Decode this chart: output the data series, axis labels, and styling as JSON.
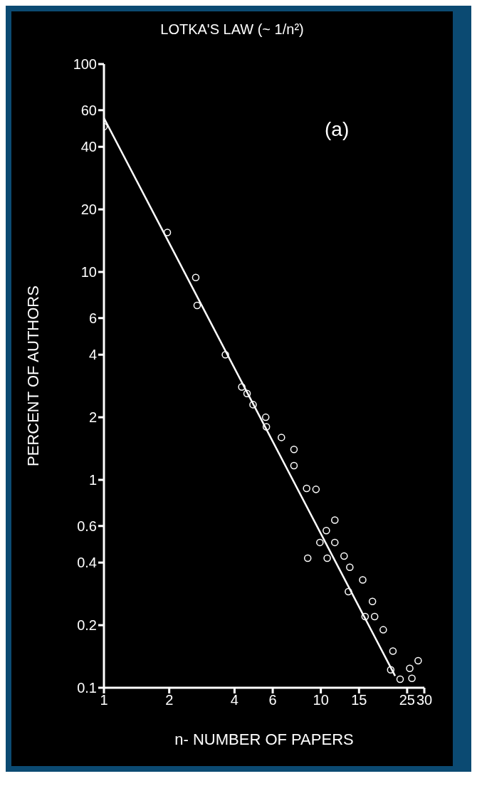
{
  "chart_data": {
    "type": "scatter",
    "title": "LOTKA'S LAW (~ 1/n²)",
    "xlabel": "n- NUMBER OF PAPERS",
    "ylabel": "PERCENT OF AUTHORS",
    "annotations": [
      "(a)"
    ],
    "log": "xy",
    "marker": "circle",
    "xlim": [
      1,
      30
    ],
    "xticks": [
      1,
      2,
      4,
      6,
      10,
      15,
      25,
      30
    ],
    "ylim": [
      0.1,
      100
    ],
    "yticks": [
      0.1,
      0.2,
      0.4,
      0.6,
      1,
      2,
      4,
      6,
      10,
      20,
      40,
      60,
      100
    ],
    "series": [
      {
        "color": "#ffffff",
        "x": [
          1,
          1.96,
          2.65,
          2.69,
          3.63,
          4.32,
          4.57,
          4.87,
          5.57,
          5.61,
          6.58,
          7.52,
          7.52,
          8.6,
          9.5,
          11.6,
          10.6,
          9.9,
          11.6,
          8.7,
          10.7,
          12.8,
          13.6,
          15.6,
          13.4,
          17.3,
          17.7,
          16,
          19.4,
          21.5,
          21,
          25.7,
          28.1,
          23.2,
          26.3
        ],
        "values": [
          50,
          15.5,
          9.4,
          6.9,
          4,
          2.8,
          2.6,
          2.3,
          2,
          1.8,
          1.6,
          1.4,
          1.17,
          0.91,
          0.9,
          0.64,
          0.57,
          0.5,
          0.5,
          0.42,
          0.42,
          0.43,
          0.38,
          0.33,
          0.29,
          0.26,
          0.22,
          0.22,
          0.19,
          0.15,
          0.122,
          0.124,
          0.135,
          0.11,
          0.111
        ]
      },
      {
        "type": "line",
        "color": "#ffffff",
        "marker": "none",
        "line_style": "solid",
        "x": [
          1,
          22
        ],
        "values": [
          55,
          0.114
        ]
      }
    ]
  }
}
